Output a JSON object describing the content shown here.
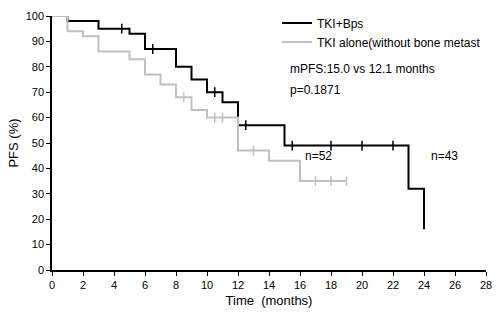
{
  "chart_data": {
    "type": "line",
    "line_style": "step",
    "xlabel": "Time  (months)",
    "ylabel": "PFS (%)",
    "xlim": [
      0,
      28
    ],
    "xticks": [
      0,
      2,
      4,
      6,
      8,
      10,
      12,
      14,
      16,
      18,
      20,
      22,
      24,
      26,
      28
    ],
    "ylim": [
      0,
      100
    ],
    "yticks": [
      0,
      10,
      20,
      30,
      40,
      50,
      60,
      70,
      80,
      90,
      100
    ],
    "grid": false,
    "legend": "upper right",
    "series": [
      {
        "name": "TKI+Bps",
        "color": "#000000",
        "x": [
          0,
          1,
          3,
          5,
          6,
          8,
          9,
          10,
          11,
          12,
          15,
          23,
          24
        ],
        "values": [
          100,
          98,
          95,
          93,
          87,
          80,
          75,
          70,
          66,
          57,
          49,
          32,
          16
        ],
        "censored_x": [
          4.5,
          6.5,
          10.5,
          12.5,
          15.5,
          18,
          20,
          22
        ],
        "censored_y": [
          95,
          87,
          70,
          57,
          49,
          49,
          49,
          49
        ]
      },
      {
        "name": "TKI alone(without bone metast",
        "color": "#c0c0c0",
        "x": [
          0,
          1,
          2,
          3,
          5,
          6,
          7,
          8,
          9,
          10,
          12,
          14,
          16,
          19
        ],
        "values": [
          100,
          94,
          92,
          86,
          83,
          77,
          73,
          68,
          63,
          60,
          47,
          43,
          35,
          35
        ],
        "censored_x": [
          8.5,
          10.5,
          11,
          13,
          17,
          18,
          19
        ],
        "censored_y": [
          68,
          60,
          60,
          47,
          35,
          35,
          35
        ]
      }
    ],
    "annotations": [
      {
        "text": "mPFS:15.0 vs 12.1 months",
        "x": 15.2,
        "y": 79
      },
      {
        "text": "p=0.1871",
        "x": 15.2,
        "y": 71
      },
      {
        "text": "n=52",
        "x": 16.2,
        "y": 45
      },
      {
        "text": "n=43",
        "x": 24.3,
        "y": 45
      }
    ]
  }
}
